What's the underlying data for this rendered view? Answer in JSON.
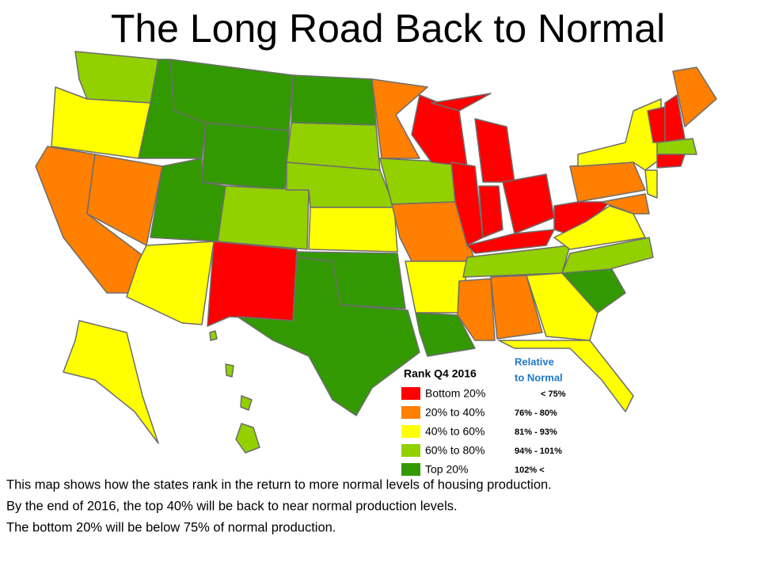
{
  "title": "The Long Road Back to Normal",
  "legend": {
    "title": "Rank Q4 2016",
    "relative_header": [
      "Relative",
      "to Normal"
    ],
    "items": [
      {
        "label": "Bottom 20%",
        "range": "< 75%",
        "color": "#ff0000"
      },
      {
        "label": "20% to 40%",
        "range": "76% - 80%",
        "color": "#ff7f00"
      },
      {
        "label": "40% to 60%",
        "range": "81% - 93%",
        "color": "#ffff00"
      },
      {
        "label": "60% to 80%",
        "range": "94% - 101%",
        "color": "#92d000"
      },
      {
        "label": "Top 20%",
        "range": "102% <",
        "color": "#339900"
      }
    ]
  },
  "footer": [
    "This map shows how the states rank in the return to more normal levels of housing production.",
    "By the end of 2016, the top 40% will be back to near normal production levels.",
    "The bottom 20% will be below 75% of normal production."
  ]
}
